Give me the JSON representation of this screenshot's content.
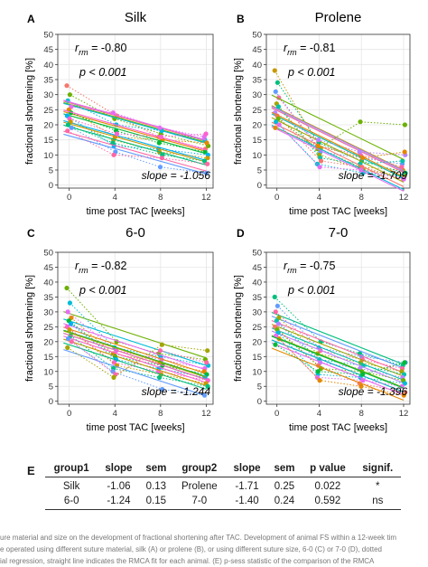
{
  "colors": {
    "palette": [
      "#F8766D",
      "#E58700",
      "#C99800",
      "#A3A500",
      "#6BB100",
      "#00BA38",
      "#00BF7D",
      "#00C0AF",
      "#00BCD8",
      "#00B0F6",
      "#619CFF",
      "#B983FF",
      "#E76BF3",
      "#FD61D1",
      "#FF67A4"
    ],
    "grid": "#e6e6e6",
    "axis": "#1a1a1a"
  },
  "chart_data": [
    {
      "type": "scatter",
      "panel": "A",
      "title": "Silk",
      "xlabel": "time post TAC [weeks]",
      "ylabel": "fractional shortening [%]",
      "x_ticks": [
        0,
        4,
        8,
        12
      ],
      "y_ticks": [
        0,
        5,
        10,
        15,
        20,
        25,
        30,
        35,
        40,
        45,
        50
      ],
      "xlim": [
        -1,
        12.6
      ],
      "ylim": [
        -1,
        50
      ],
      "annotations": {
        "r_value": "= -0.80",
        "p_text": "p < 0.001",
        "slope_text": "slope = -1.056"
      },
      "slope": -1.056,
      "x": [
        0,
        4,
        8,
        12
      ],
      "series": [
        {
          "values": [
            33,
            23,
            16,
            12
          ]
        },
        {
          "values": [
            30,
            22,
            17,
            13
          ]
        },
        {
          "values": [
            28,
            20,
            18,
            15
          ]
        },
        {
          "values": [
            26,
            24,
            19,
            16
          ]
        },
        {
          "values": [
            25,
            16,
            15,
            14
          ]
        },
        {
          "values": [
            24,
            18,
            14,
            11
          ]
        },
        {
          "values": [
            23,
            13,
            12,
            10
          ]
        },
        {
          "values": [
            22,
            17,
            16,
            17
          ]
        },
        {
          "values": [
            21,
            15,
            11,
            9
          ]
        },
        {
          "values": [
            20,
            14,
            10,
            8
          ]
        },
        {
          "values": [
            19,
            11,
            6,
            4
          ]
        },
        {
          "values": [
            18,
            10,
            9,
            7
          ]
        }
      ]
    },
    {
      "type": "scatter",
      "panel": "B",
      "title": "Prolene",
      "xlabel": "time post TAC [weeks]",
      "ylabel": "fractional shortening [%]",
      "x_ticks": [
        0,
        4,
        8,
        12
      ],
      "y_ticks": [
        0,
        5,
        10,
        15,
        20,
        25,
        30,
        35,
        40,
        45,
        50
      ],
      "xlim": [
        -1,
        12.6
      ],
      "ylim": [
        -1,
        50
      ],
      "annotations": {
        "r_value": "= -0.81",
        "p_text": "p < 0.001",
        "slope_text": "slope = -1.709"
      },
      "slope": -1.709,
      "x": [
        0,
        4,
        8,
        12
      ],
      "series": [
        {
          "values": [
            38,
            12,
            6,
            5
          ]
        },
        {
          "values": [
            34,
            14,
            8,
            4
          ]
        },
        {
          "values": [
            31,
            11,
            9,
            7
          ]
        },
        {
          "values": [
            29,
            13,
            10,
            6
          ]
        },
        {
          "values": [
            27,
            10,
            5,
            3
          ]
        },
        {
          "values": [
            26,
            9,
            7,
            8
          ]
        },
        {
          "values": [
            24,
            15,
            11,
            10
          ]
        },
        {
          "values": [
            23,
            8,
            6,
            2
          ]
        },
        {
          "values": [
            22,
            12,
            21,
            20
          ]
        },
        {
          "values": [
            21,
            7,
            4,
            3
          ]
        },
        {
          "values": [
            20,
            6,
            5,
            2
          ]
        },
        {
          "values": [
            19,
            13,
            9,
            11
          ]
        }
      ]
    },
    {
      "type": "scatter",
      "panel": "C",
      "title": "6-0",
      "xlabel": "time post TAC [weeks]",
      "ylabel": "fractional shortening [%]",
      "x_ticks": [
        0,
        4,
        8,
        12
      ],
      "y_ticks": [
        0,
        5,
        10,
        15,
        20,
        25,
        30,
        35,
        40,
        45,
        50
      ],
      "xlim": [
        -1,
        12.6
      ],
      "ylim": [
        -1,
        50
      ],
      "annotations": {
        "r_value": "= -0.82",
        "p_text": "p < 0.001",
        "slope_text": "slope = -1.244"
      },
      "slope": -1.244,
      "x": [
        0,
        4,
        8,
        12
      ],
      "series": [
        {
          "values": [
            38,
            20,
            16,
            14
          ]
        },
        {
          "values": [
            33,
            18,
            15,
            12
          ]
        },
        {
          "values": [
            30,
            17,
            14,
            11
          ]
        },
        {
          "values": [
            28,
            16,
            13,
            10
          ]
        },
        {
          "values": [
            27,
            15,
            12,
            9
          ]
        },
        {
          "values": [
            26,
            14,
            11,
            8
          ]
        },
        {
          "values": [
            25,
            13,
            10,
            7
          ]
        },
        {
          "values": [
            24,
            12,
            9,
            6
          ]
        },
        {
          "values": [
            22,
            11,
            8,
            5
          ]
        },
        {
          "values": [
            21,
            10,
            4,
            2
          ]
        },
        {
          "values": [
            20,
            9,
            17,
            13
          ]
        },
        {
          "values": [
            18,
            8,
            19,
            17
          ]
        }
      ]
    },
    {
      "type": "scatter",
      "panel": "D",
      "title": "7-0",
      "xlabel": "time post TAC [weeks]",
      "ylabel": "fractional shortening [%]",
      "x_ticks": [
        0,
        4,
        8,
        12
      ],
      "y_ticks": [
        0,
        5,
        10,
        15,
        20,
        25,
        30,
        35,
        40,
        45,
        50
      ],
      "xlim": [
        -1,
        12.6
      ],
      "ylim": [
        -1,
        50
      ],
      "annotations": {
        "r_value": "= -0.75",
        "p_text": "p < 0.001",
        "slope_text": "slope = -1.396"
      },
      "slope": -1.396,
      "x": [
        0,
        4,
        8,
        12
      ],
      "series": [
        {
          "values": [
            35,
            20,
            16,
            12
          ]
        },
        {
          "values": [
            32,
            18,
            15,
            13
          ]
        },
        {
          "values": [
            30,
            17,
            14,
            11
          ]
        },
        {
          "values": [
            28,
            16,
            13,
            10
          ]
        },
        {
          "values": [
            27,
            14,
            12,
            9
          ]
        },
        {
          "values": [
            26,
            13,
            11,
            8
          ]
        },
        {
          "values": [
            25,
            12,
            6,
            3
          ]
        },
        {
          "values": [
            24,
            11,
            10,
            7
          ]
        },
        {
          "values": [
            23,
            9,
            8,
            6
          ]
        },
        {
          "values": [
            22,
            8,
            7,
            5
          ]
        },
        {
          "values": [
            21,
            7,
            5,
            2
          ]
        },
        {
          "values": [
            19,
            10,
            9,
            13
          ]
        }
      ]
    },
    {
      "type": "table",
      "panel": "E",
      "columns": [
        "group1",
        "slope",
        "sem",
        "group2",
        "slope",
        "sem",
        "p value",
        "signif."
      ],
      "rows": [
        [
          "Silk",
          "-1.06",
          "0.13",
          "Prolene",
          "-1.71",
          "0.25",
          "0.022",
          "*"
        ],
        [
          "6-0",
          "-1.24",
          "0.15",
          "7-0",
          "-1.40",
          "0.24",
          "0.592",
          "ns"
        ]
      ]
    }
  ],
  "caption": [
    "ure material and size on the development of fractional shortening after TAC. Development of animal FS within a 12-week tim",
    "e operated using different suture material, silk (A) or prolene (B), or using different suture size, 6-0 (C) or 7-0 (D), dotted",
    "ial regression, straight line indicates the RMCA fit for each animal. (E) p-sess statistic of the comparison of the RMCA"
  ]
}
